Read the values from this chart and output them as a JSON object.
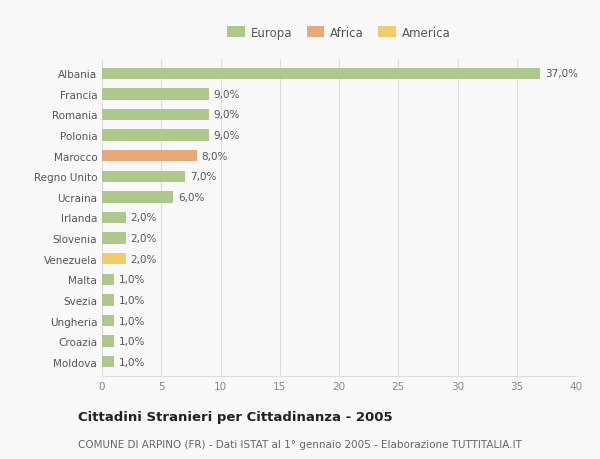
{
  "countries": [
    "Albania",
    "Francia",
    "Romania",
    "Polonia",
    "Marocco",
    "Regno Unito",
    "Ucraina",
    "Irlanda",
    "Slovenia",
    "Venezuela",
    "Malta",
    "Svezia",
    "Ungheria",
    "Croazia",
    "Moldova"
  ],
  "values": [
    37.0,
    9.0,
    9.0,
    9.0,
    8.0,
    7.0,
    6.0,
    2.0,
    2.0,
    2.0,
    1.0,
    1.0,
    1.0,
    1.0,
    1.0
  ],
  "continents": [
    "Europa",
    "Europa",
    "Europa",
    "Europa",
    "Africa",
    "Europa",
    "Europa",
    "Europa",
    "Europa",
    "America",
    "Europa",
    "Europa",
    "Europa",
    "Europa",
    "Europa"
  ],
  "colors": {
    "Europa": "#adc88a",
    "Africa": "#e8a97a",
    "America": "#f0cc6a"
  },
  "xlim": [
    0,
    40
  ],
  "xticks": [
    0,
    5,
    10,
    15,
    20,
    25,
    30,
    35,
    40
  ],
  "title": "Cittadini Stranieri per Cittadinanza - 2005",
  "subtitle": "COMUNE DI ARPINO (FR) - Dati ISTAT al 1° gennaio 2005 - Elaborazione TUTTITALIA.IT",
  "background_color": "#f9f9f9",
  "grid_color": "#dddddd",
  "bar_height": 0.55,
  "label_fontsize": 7.5,
  "ytick_fontsize": 7.5,
  "xtick_fontsize": 7.5,
  "title_fontsize": 9.5,
  "subtitle_fontsize": 7.5,
  "legend_fontsize": 8.5
}
